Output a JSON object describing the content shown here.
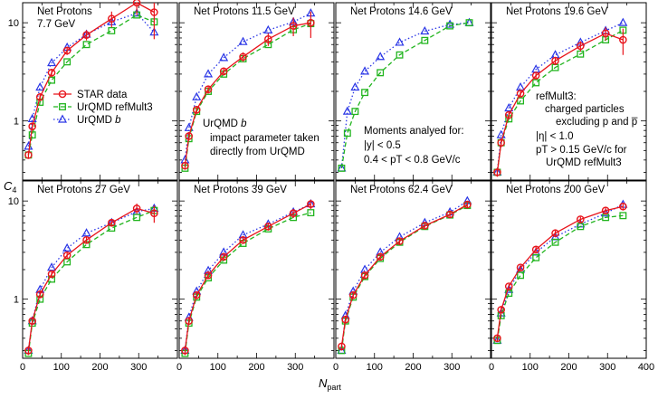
{
  "figure": {
    "ylabel": "C",
    "ylabel_sub": "4",
    "xlabel": "N",
    "xlabel_sub": "part",
    "x_ticks": [
      "0",
      "100",
      "200",
      "300",
      "400"
    ],
    "y_ticks": [
      "1",
      "10"
    ],
    "legend": [
      {
        "label": "STAR data",
        "color": "#e8141b",
        "marker": "circle",
        "dash": "solid"
      },
      {
        "label": "UrQMD refMult3",
        "color": "#22b51f",
        "marker": "square",
        "dash": "dashed"
      },
      {
        "label": "UrQMD b",
        "color": "#2a36e6",
        "marker": "triangle",
        "dash": "dotted"
      }
    ],
    "notes": {
      "urqmd_b": [
        "UrQMD b",
        "impact parameter taken",
        "directly from UrQMD"
      ],
      "moments": [
        "Moments analyed for:",
        "|y| < 0.5",
        "0.4 < pT < 0.8 GeV/c"
      ],
      "refmult": [
        "refMult3:",
        "charged particles",
        "excluding p and p̅",
        "|η| < 1.0",
        "pT > 0.15 GeV/c for",
        "UrQMD refMult3"
      ]
    }
  },
  "chart_data": [
    {
      "type": "line",
      "title": "Net Protons",
      "subtitle": "7.7 GeV",
      "xlim": [
        0,
        400
      ],
      "ylim": [
        0.25,
        16
      ],
      "yscale": "log",
      "series": [
        {
          "name": "STAR data",
          "x": [
            15,
            25,
            45,
            75,
            115,
            165,
            230,
            295,
            340
          ],
          "y": [
            0.45,
            0.88,
            1.75,
            3.1,
            5.2,
            7.5,
            11.0,
            16.0,
            12.8
          ],
          "err": [
            0.04,
            0.08,
            0.15,
            0.3,
            0.5,
            0.9,
            2.0,
            4.0,
            6.0
          ]
        },
        {
          "name": "UrQMD refMult3",
          "x": [
            15,
            25,
            45,
            75,
            115,
            165,
            230,
            295,
            340
          ],
          "y": [
            0.45,
            0.72,
            1.55,
            2.6,
            4.0,
            6.0,
            8.3,
            12.0,
            10.2
          ]
        },
        {
          "name": "UrQMD b",
          "x": [
            15,
            25,
            45,
            75,
            115,
            165,
            230,
            295,
            340
          ],
          "y": [
            0.55,
            1.05,
            2.2,
            3.9,
            5.6,
            7.6,
            10.2,
            12.5,
            8.0
          ]
        }
      ]
    },
    {
      "type": "line",
      "title": "Net Protons 11.5 GeV",
      "subtitle": "",
      "xlim": [
        0,
        400
      ],
      "ylim": [
        0.25,
        16
      ],
      "yscale": "log",
      "series": [
        {
          "name": "STAR data",
          "x": [
            15,
            25,
            45,
            75,
            115,
            165,
            230,
            295,
            340
          ],
          "y": [
            0.35,
            0.7,
            1.3,
            2.1,
            3.2,
            4.5,
            6.8,
            9.3,
            10.0
          ],
          "err": [
            0.03,
            0.07,
            0.12,
            0.2,
            0.3,
            0.5,
            1.0,
            2.0,
            3.0
          ]
        },
        {
          "name": "UrQMD refMult3",
          "x": [
            15,
            25,
            45,
            75,
            115,
            165,
            230,
            295,
            340
          ],
          "y": [
            0.33,
            0.66,
            1.25,
            2.0,
            3.0,
            4.3,
            6.0,
            8.5,
            9.8
          ]
        },
        {
          "name": "UrQMD b",
          "x": [
            15,
            25,
            45,
            75,
            115,
            165,
            230,
            295,
            340
          ],
          "y": [
            0.4,
            0.85,
            1.75,
            3.0,
            4.4,
            6.4,
            8.4,
            10.2,
            12.5
          ]
        }
      ]
    },
    {
      "type": "line",
      "title": "Net Protons 14.6 GeV",
      "subtitle": "",
      "xlim": [
        0,
        400
      ],
      "ylim": [
        0.25,
        16
      ],
      "yscale": "log",
      "series": [
        {
          "name": "UrQMD refMult3",
          "x": [
            15,
            30,
            50,
            75,
            115,
            165,
            230,
            295,
            345
          ],
          "y": [
            0.33,
            0.75,
            1.25,
            1.95,
            3.1,
            4.7,
            6.6,
            9.3,
            10.0
          ]
        },
        {
          "name": "UrQMD b",
          "x": [
            15,
            30,
            50,
            75,
            115,
            165,
            230,
            295,
            345
          ],
          "y": [
            0.33,
            1.25,
            2.2,
            3.2,
            4.5,
            6.3,
            8.2,
            9.6,
            10.0
          ]
        }
      ]
    },
    {
      "type": "line",
      "title": "Net Protons 19.6 GeV",
      "subtitle": "",
      "xlim": [
        0,
        400
      ],
      "ylim": [
        0.25,
        16
      ],
      "yscale": "log",
      "series": [
        {
          "name": "STAR data",
          "x": [
            15,
            25,
            45,
            75,
            115,
            165,
            230,
            295,
            340
          ],
          "y": [
            0.3,
            0.6,
            1.15,
            1.9,
            2.9,
            4.1,
            5.8,
            7.8,
            6.7
          ],
          "err": [
            0.03,
            0.06,
            0.1,
            0.15,
            0.25,
            0.4,
            0.7,
            1.2,
            2.0
          ]
        },
        {
          "name": "UrQMD refMult3",
          "x": [
            15,
            25,
            45,
            75,
            115,
            165,
            230,
            295,
            340
          ],
          "y": [
            0.3,
            0.6,
            1.05,
            1.6,
            2.45,
            3.5,
            4.8,
            6.7,
            8.4
          ]
        },
        {
          "name": "UrQMD b",
          "x": [
            15,
            25,
            45,
            75,
            115,
            165,
            230,
            295,
            340
          ],
          "y": [
            0.3,
            0.72,
            1.35,
            2.2,
            3.35,
            4.7,
            6.3,
            8.3,
            10.0
          ]
        }
      ]
    },
    {
      "type": "line",
      "title": "Net Protons 27 GeV",
      "subtitle": "",
      "xlim": [
        0,
        400
      ],
      "ylim": [
        0.25,
        16
      ],
      "yscale": "log",
      "series": [
        {
          "name": "STAR data",
          "x": [
            15,
            25,
            45,
            75,
            115,
            165,
            230,
            295,
            340
          ],
          "y": [
            0.3,
            0.6,
            1.12,
            1.8,
            2.8,
            4.0,
            6.0,
            8.4,
            7.5
          ],
          "err": [
            0.03,
            0.05,
            0.1,
            0.15,
            0.2,
            0.3,
            0.5,
            1.0,
            1.5
          ]
        },
        {
          "name": "UrQMD refMult3",
          "x": [
            15,
            25,
            45,
            75,
            115,
            165,
            230,
            295,
            340
          ],
          "y": [
            0.28,
            0.57,
            1.0,
            1.6,
            2.4,
            3.6,
            5.3,
            6.8,
            8.0
          ]
        },
        {
          "name": "UrQMD b",
          "x": [
            15,
            25,
            45,
            75,
            115,
            165,
            230,
            295,
            340
          ],
          "y": [
            0.3,
            0.6,
            1.25,
            2.1,
            3.3,
            4.7,
            6.0,
            7.8,
            8.4
          ]
        }
      ]
    },
    {
      "type": "line",
      "title": "Net Protons 39 GeV",
      "subtitle": "",
      "xlim": [
        0,
        400
      ],
      "ylim": [
        0.25,
        16
      ],
      "yscale": "log",
      "series": [
        {
          "name": "STAR data",
          "x": [
            15,
            25,
            45,
            75,
            115,
            165,
            230,
            295,
            340
          ],
          "y": [
            0.3,
            0.6,
            1.1,
            1.75,
            2.7,
            4.0,
            5.5,
            7.5,
            9.3
          ],
          "err": [
            0.03,
            0.05,
            0.1,
            0.15,
            0.2,
            0.3,
            0.5,
            0.8,
            1.0
          ]
        },
        {
          "name": "UrQMD refMult3",
          "x": [
            15,
            25,
            45,
            75,
            115,
            165,
            230,
            295,
            340
          ],
          "y": [
            0.28,
            0.57,
            1.05,
            1.65,
            2.5,
            3.7,
            5.2,
            6.8,
            7.6
          ]
        },
        {
          "name": "UrQMD b",
          "x": [
            15,
            25,
            45,
            75,
            115,
            165,
            230,
            295,
            340
          ],
          "y": [
            0.3,
            0.65,
            1.2,
            1.95,
            3.0,
            4.5,
            5.8,
            7.7,
            9.3
          ]
        }
      ]
    },
    {
      "type": "line",
      "title": "Net Protons 62.4 GeV",
      "subtitle": "",
      "xlim": [
        0,
        400
      ],
      "ylim": [
        0.25,
        16
      ],
      "yscale": "log",
      "series": [
        {
          "name": "STAR data",
          "x": [
            15,
            25,
            45,
            75,
            115,
            165,
            230,
            295,
            340
          ],
          "y": [
            0.33,
            0.62,
            1.1,
            1.75,
            2.7,
            3.9,
            5.6,
            7.3,
            9.2
          ],
          "err": [
            0.03,
            0.05,
            0.08,
            0.12,
            0.2,
            0.3,
            0.4,
            0.6,
            0.8
          ]
        },
        {
          "name": "UrQMD refMult3",
          "x": [
            15,
            25,
            45,
            75,
            115,
            165,
            230,
            295,
            340
          ],
          "y": [
            0.3,
            0.6,
            1.05,
            1.7,
            2.6,
            3.8,
            5.5,
            7.2,
            9.0
          ]
        },
        {
          "name": "UrQMD b",
          "x": [
            15,
            25,
            45,
            75,
            115,
            165,
            230,
            295,
            340
          ],
          "y": [
            0.3,
            0.68,
            1.2,
            2.0,
            3.0,
            4.3,
            6.0,
            7.7,
            10.0
          ]
        }
      ]
    },
    {
      "type": "line",
      "title": "Net Protons 200 GeV",
      "subtitle": "",
      "xlim": [
        0,
        400
      ],
      "ylim": [
        0.25,
        16
      ],
      "yscale": "log",
      "series": [
        {
          "name": "STAR data",
          "x": [
            15,
            25,
            45,
            75,
            115,
            165,
            230,
            295,
            340
          ],
          "y": [
            0.4,
            0.78,
            1.35,
            2.1,
            3.2,
            4.7,
            6.5,
            8.0,
            8.8
          ],
          "err": [
            0.03,
            0.05,
            0.08,
            0.12,
            0.2,
            0.3,
            0.4,
            0.6,
            0.8
          ]
        },
        {
          "name": "UrQMD refMult3",
          "x": [
            15,
            25,
            45,
            75,
            115,
            165,
            230,
            295,
            340
          ],
          "y": [
            0.38,
            0.68,
            1.15,
            1.75,
            2.65,
            3.8,
            5.5,
            6.8,
            7.1
          ]
        },
        {
          "name": "UrQMD b",
          "x": [
            15,
            25,
            45,
            75,
            115,
            165,
            230,
            295,
            340
          ],
          "y": [
            0.38,
            0.72,
            1.25,
            2.0,
            3.0,
            4.3,
            5.8,
            7.5,
            9.2
          ]
        }
      ]
    }
  ]
}
